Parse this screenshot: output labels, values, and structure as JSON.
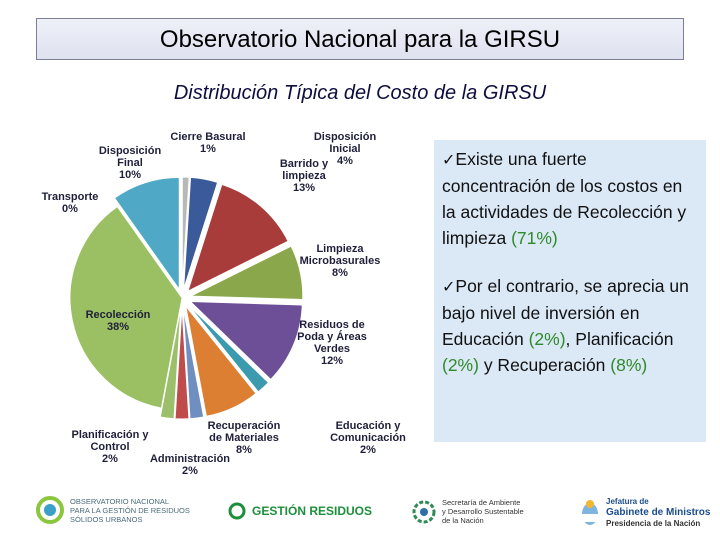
{
  "slide": {
    "title": "Observatorio Nacional para la GIRSU",
    "subtitle": "Distribución Típica del Costo de la GIRSU"
  },
  "bullets": {
    "check": "✓",
    "b1_a": "Existe una fuerte concentración de los costos en la actividades de Recolección y limpieza ",
    "b1_pct": "(71%)",
    "b2_a": "Por el contrario, se aprecia un bajo nivel de inversión en Educación ",
    "b2_pct1": "(2%)",
    "b2_b": ", Planificación ",
    "b2_pct2": "(2%)",
    "b2_c": " y Recuperación ",
    "b2_pct3": "(8%)"
  },
  "logos": {
    "observatorio": [
      "OBSERVATORIO NACIONAL",
      "PARA LA GESTIÓN DE RESIDUOS",
      "SÓLIDOS URBANOS"
    ],
    "gestion": "GESTIÓN RESIDUOS",
    "secretaria": [
      "Secretaría de Ambiente",
      "y Desarrollo Sustentable",
      "de la Nación"
    ],
    "jefatura": [
      "Jefatura de",
      "Gabinete de Ministros",
      "Presidencia de la Nación"
    ]
  },
  "chart_data": {
    "type": "pie",
    "slices": [
      {
        "label": [
          "Cierre Basural",
          "1%"
        ],
        "value": 1,
        "color": "#b8b8b8"
      },
      {
        "label": [
          "Disposición",
          "Inicial",
          "4%"
        ],
        "value": 4,
        "color": "#3b5a9a"
      },
      {
        "label": [
          "Barrido y",
          "limpieza",
          "13%"
        ],
        "value": 13,
        "color": "#a83c3a"
      },
      {
        "label": [
          "Limpieza",
          "Microbasurales",
          "8%"
        ],
        "value": 8,
        "color": "#8aa84b"
      },
      {
        "label": [
          "Residuos de",
          "Poda y Áreas",
          "Verdes",
          "12%"
        ],
        "value": 12,
        "color": "#6c4f96"
      },
      {
        "label": [],
        "value": 2,
        "color": "#3c9aae"
      },
      {
        "label": [
          "Recuperación",
          "de Materiales",
          "8%"
        ],
        "value": 8,
        "color": "#dc7f32"
      },
      {
        "label": [
          "Educación y",
          "Comunicación",
          "2%"
        ],
        "value": 2,
        "color": "#6f8fc0"
      },
      {
        "label": [
          "Administración",
          "2%"
        ],
        "value": 2,
        "color": "#bf4b4b"
      },
      {
        "label": [
          "Planificación y",
          "Control",
          "2%"
        ],
        "value": 2,
        "color": "#9bbf6a"
      },
      {
        "label": [
          "Recolección",
          "38%"
        ],
        "value": 38,
        "color": "#9bc063"
      },
      {
        "label": [
          "Transporte",
          "0%"
        ],
        "value": 0,
        "color": "#7a6aa8"
      },
      {
        "label": [
          "Disposición",
          "Final",
          "10%"
        ],
        "value": 10,
        "color": "#4fa9c6"
      }
    ]
  }
}
